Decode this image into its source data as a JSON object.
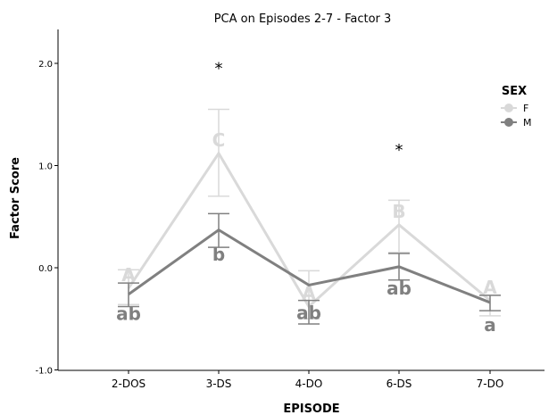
{
  "chart_data": {
    "type": "line",
    "title": "PCA on Episodes 2-7 - Factor 3",
    "xlabel": "EPISODE",
    "ylabel": "Factor Score",
    "categories": [
      "2-DOS",
      "3-DS",
      "4-DO",
      "6-DS",
      "7-DO"
    ],
    "ylim": [
      -1.0,
      2.3
    ],
    "yticks": [
      {
        "value": -1.0,
        "label": "-1.0"
      },
      {
        "value": 0.0,
        "label": "0.0"
      },
      {
        "value": 1.0,
        "label": "1.0"
      },
      {
        "value": 2.0,
        "label": "2.0"
      }
    ],
    "legend": {
      "title": "SEX",
      "position": "top-right"
    },
    "series": [
      {
        "name": "F",
        "color": "#d9d9d9",
        "values": [
          -0.2,
          1.12,
          -0.38,
          0.42,
          -0.32
        ],
        "err_low": [
          -0.36,
          0.7,
          -0.5,
          0.15,
          -0.47
        ],
        "err_high": [
          -0.02,
          1.55,
          -0.03,
          0.66,
          -0.27
        ],
        "letters": [
          "A",
          "C",
          "A",
          "B",
          "A"
        ]
      },
      {
        "name": "M",
        "color": "#808080",
        "values": [
          -0.26,
          0.37,
          -0.17,
          0.01,
          -0.34
        ],
        "err_low": [
          -0.38,
          0.2,
          -0.55,
          -0.12,
          -0.42
        ],
        "err_high": [
          -0.15,
          0.53,
          -0.32,
          0.14,
          -0.27
        ],
        "letters": [
          "ab",
          "b",
          "ab",
          "ab",
          "a"
        ]
      }
    ],
    "annotations": [
      {
        "category": "3-DS",
        "text": "*",
        "y": 1.98
      },
      {
        "category": "6-DS",
        "text": "*",
        "y": 1.18
      }
    ],
    "letter_offsets": {
      "F": [
        0.13,
        0.13,
        0.13,
        0.13,
        0.13
      ],
      "M": [
        -0.19,
        -0.24,
        -0.27,
        -0.21,
        -0.22
      ]
    }
  }
}
